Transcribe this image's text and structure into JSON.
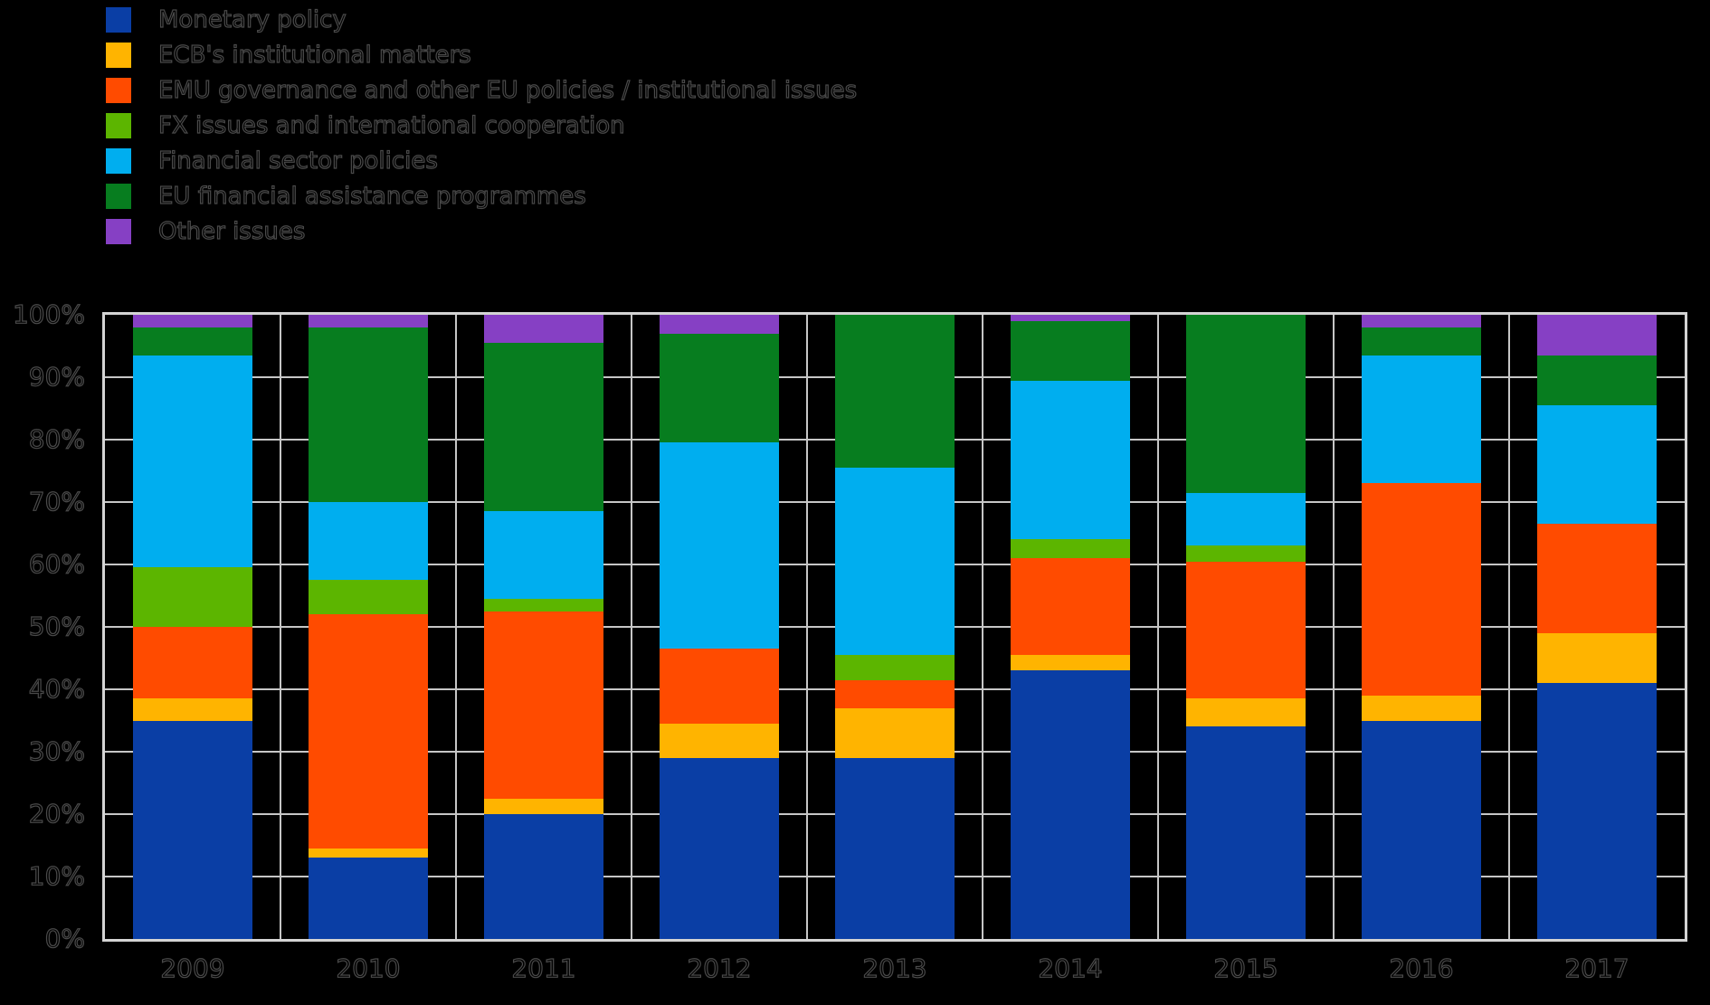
{
  "canvas": {
    "background": "#000000"
  },
  "styles": {
    "text_fill": "#000000",
    "text_outline": "#4a4a4a",
    "gridline_color": "#c6c6c6",
    "plot_border_color": "#d4d4d4"
  },
  "chart_data": {
    "type": "bar",
    "stacked": true,
    "units": "percent",
    "title": "",
    "xlabel": "",
    "ylabel": "",
    "ylim": [
      0,
      100
    ],
    "grid": true,
    "legend_position": "top-left",
    "categories": [
      "2009",
      "2010",
      "2011",
      "2012",
      "2013",
      "2014",
      "2015",
      "2016",
      "2017"
    ],
    "y_ticks": [
      "0%",
      "10%",
      "20%",
      "30%",
      "40%",
      "50%",
      "60%",
      "70%",
      "80%",
      "90%",
      "100%"
    ],
    "series": [
      {
        "name": "Monetary policy",
        "color": "#0A3EA5",
        "values": [
          35,
          13,
          20,
          29,
          29,
          43,
          34,
          35,
          41
        ]
      },
      {
        "name": "ECB's institutional matters",
        "color": "#FFB400",
        "values": [
          3.5,
          1.5,
          2.5,
          5.5,
          8,
          2.5,
          4.5,
          4,
          8
        ]
      },
      {
        "name": "EMU governance and other EU policies / institutional issues",
        "color": "#FF4B00",
        "values": [
          11.5,
          37.5,
          30,
          12,
          4.5,
          15.5,
          22,
          34,
          17.5
        ]
      },
      {
        "name": "FX issues and international cooperation",
        "color": "#5CB500",
        "values": [
          9.5,
          5.5,
          2,
          0,
          4,
          3,
          2.5,
          0,
          0
        ]
      },
      {
        "name": "Financial sector policies",
        "color": "#00AEEF",
        "values": [
          34,
          12.5,
          14,
          33,
          30,
          25.5,
          8.5,
          20.5,
          19
        ]
      },
      {
        "name": "EU financial assistance programmes",
        "color": "#077D1F",
        "values": [
          4.5,
          28,
          27,
          17.5,
          24.5,
          9.5,
          28.5,
          4.5,
          8
        ]
      },
      {
        "name": "Other issues",
        "color": "#8640C4",
        "values": [
          2,
          2,
          4.5,
          3,
          0,
          1,
          0,
          2,
          6.5
        ]
      }
    ]
  }
}
